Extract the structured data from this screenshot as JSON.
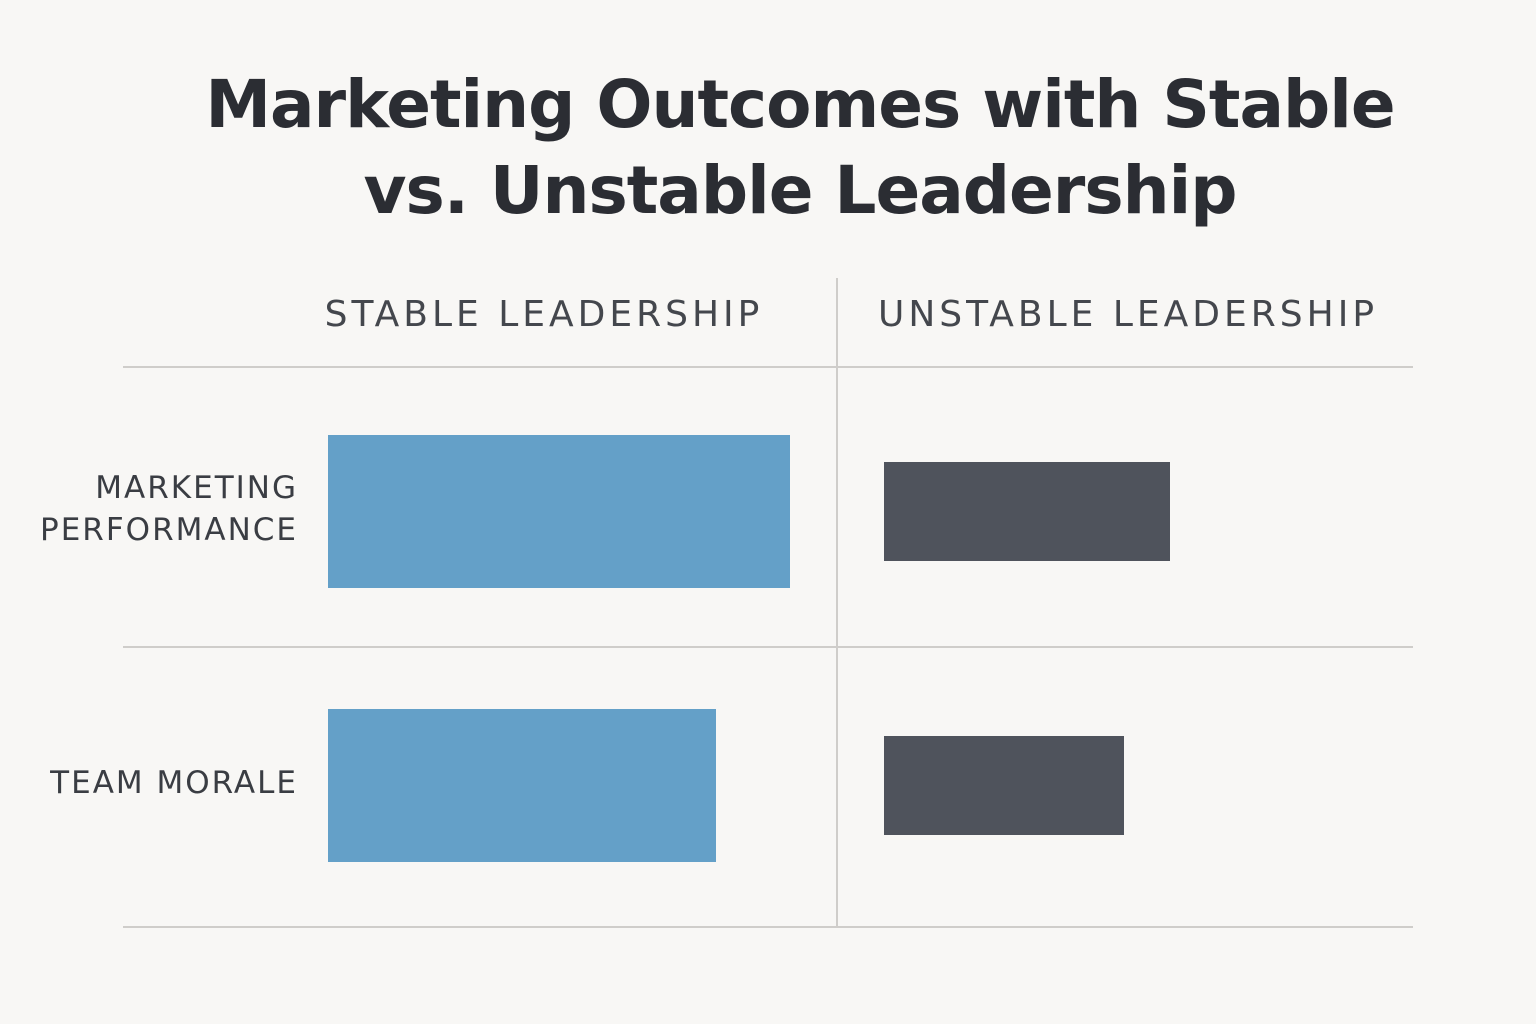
{
  "chart_data": {
    "type": "bar",
    "title": "Marketing Outcomes with Stable vs. Unstable Leadership",
    "categories": [
      "MARKETING PERFORMANCE",
      "TEAM MORALE"
    ],
    "series": [
      {
        "name": "STABLE LEADERSHIP",
        "color": "#64a0c8",
        "values": [
          100,
          84
        ]
      },
      {
        "name": "UNSTABLE LEADERSHIP",
        "color": "#4f535c",
        "values": [
          62,
          52
        ]
      }
    ]
  }
}
